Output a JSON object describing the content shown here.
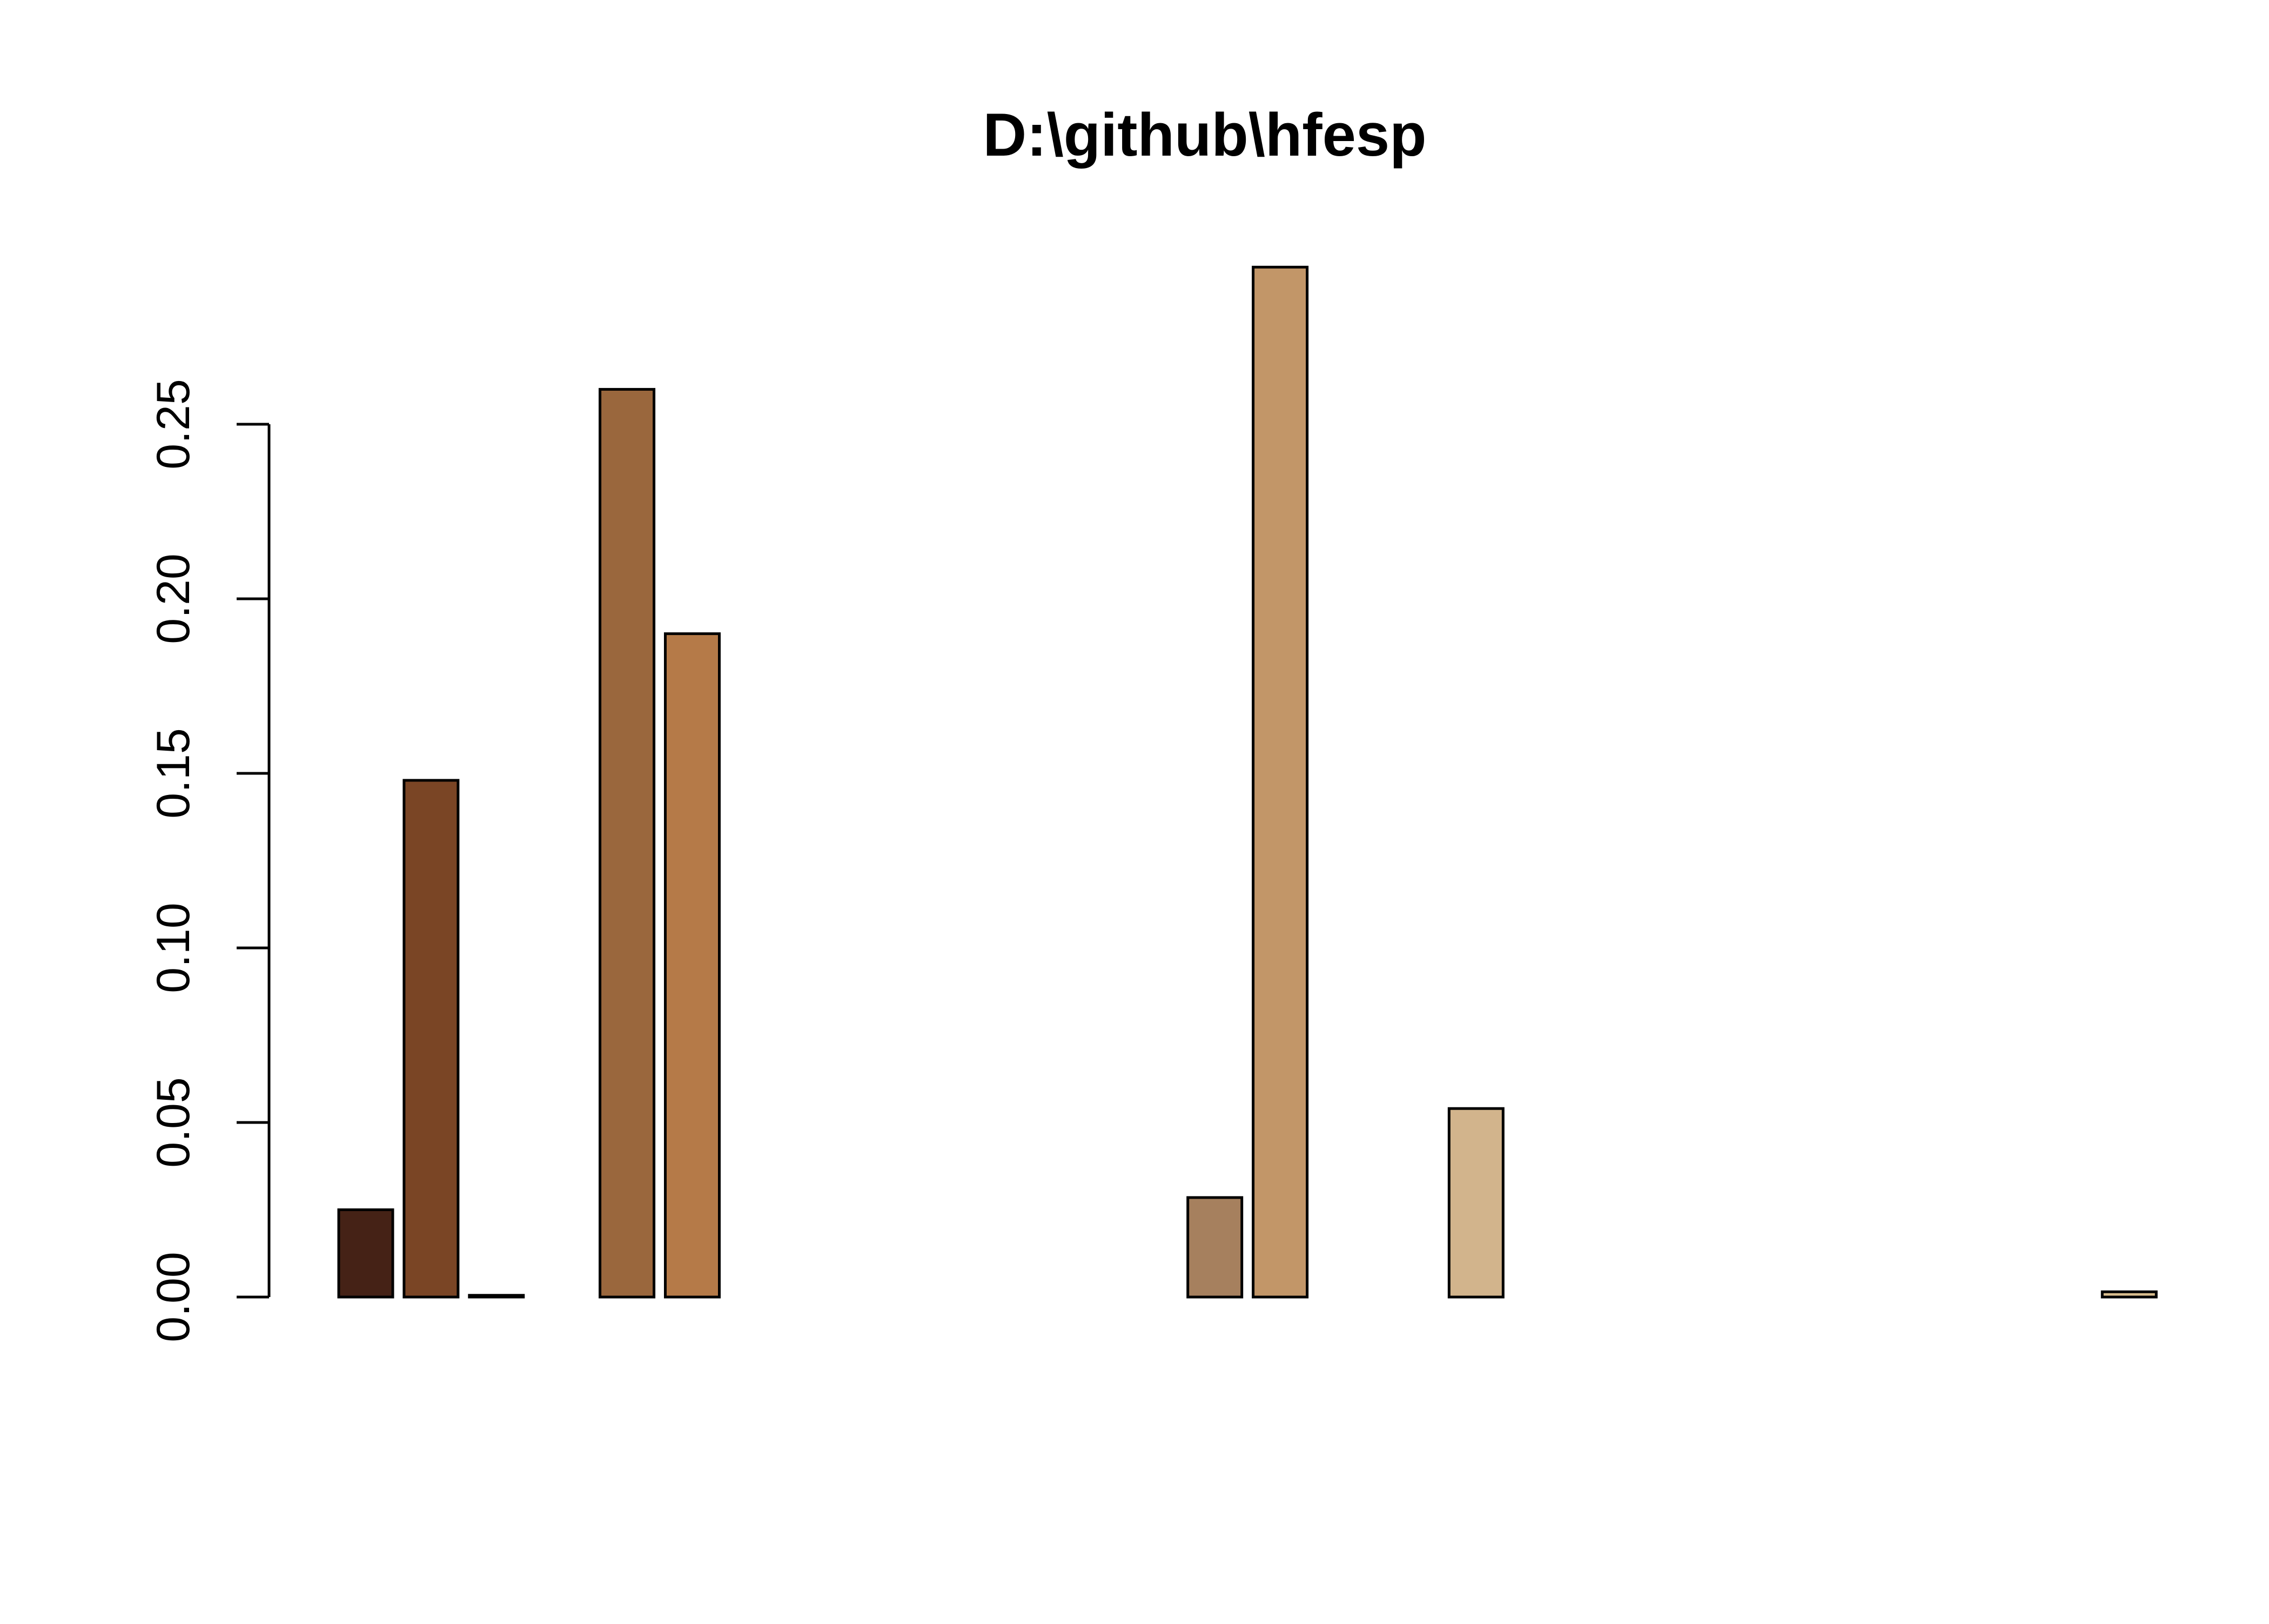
{
  "chart_data": {
    "type": "bar",
    "title": "D:\\github\\hfesp",
    "xlabel": "",
    "ylabel": "",
    "ylim": [
      0,
      0.3
    ],
    "yticks": [
      "0.00",
      "0.05",
      "0.10",
      "0.15",
      "0.20",
      "0.25"
    ],
    "ytick_values": [
      0,
      0.05,
      0.1,
      0.15,
      0.2,
      0.25
    ],
    "grid": false,
    "legend": "none",
    "values": [
      0.025,
      0.148,
      0.0005,
      0.0,
      0.26,
      0.19,
      0.0,
      0.0,
      0.0,
      0.0,
      0.0,
      0.0,
      0.0,
      0.0285,
      0.295,
      0.0,
      0.0,
      0.054,
      0.0,
      0.0,
      0.0,
      0.0,
      0.0,
      0.0,
      0.0,
      0.0,
      0.0,
      0.0015
    ],
    "colors": [
      "#452216",
      "#7a4525",
      "#6b3f24",
      "#7a4a2a",
      "#9a673d",
      "#b57a48",
      "#b98a5c",
      "#ba8b5e",
      "#bb8d60",
      "#bc8f62",
      "#bd9164",
      "#be9366",
      "#bf9568",
      "#a6805e",
      "#c29668",
      "#c6a178",
      "#caa981",
      "#d2b48c",
      "#d6bb97",
      "#d9c09e",
      "#dcc5a5",
      "#dfcaab",
      "#e2cfb1",
      "#e5d4b7",
      "#e8d8bc",
      "#ebdcc1",
      "#eee0c6",
      "#d8bd8e"
    ]
  }
}
